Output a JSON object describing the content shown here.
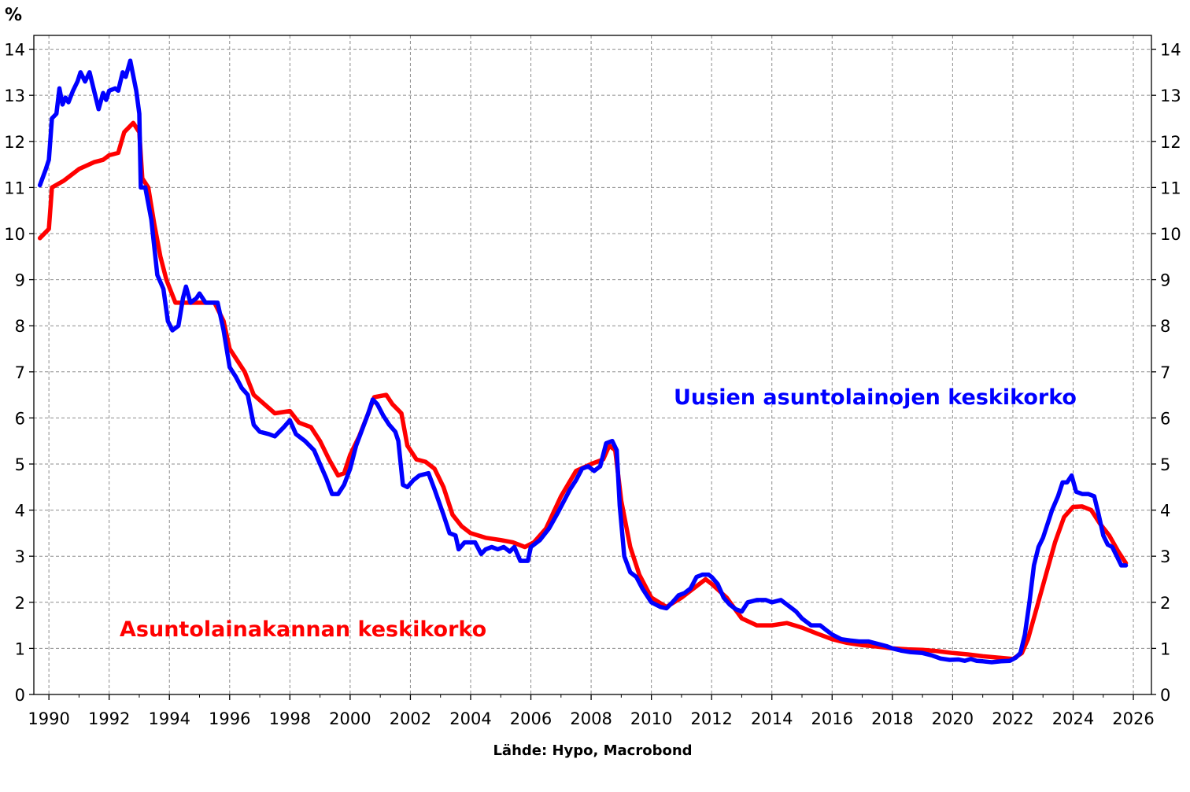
{
  "chart_data": {
    "type": "line",
    "unit_label": "%",
    "source": "Lähde: Hypo, Macrobond",
    "xlim": [
      1989.5,
      2026.6
    ],
    "ylim": [
      0,
      14.3
    ],
    "x_ticks": [
      1990,
      1992,
      1994,
      1996,
      1998,
      2000,
      2002,
      2004,
      2006,
      2008,
      2010,
      2012,
      2014,
      2016,
      2018,
      2020,
      2022,
      2024,
      2026
    ],
    "y_ticks": [
      0,
      1,
      2,
      3,
      4,
      5,
      6,
      7,
      8,
      9,
      10,
      11,
      12,
      13,
      14
    ],
    "grid": true,
    "series": [
      {
        "name": "Asuntolainakannan keskikorko",
        "color": "#ff0000",
        "points": [
          [
            1989.7,
            9.9
          ],
          [
            1990.0,
            10.1
          ],
          [
            1990.1,
            11.0
          ],
          [
            1990.5,
            11.15
          ],
          [
            1991.0,
            11.4
          ],
          [
            1991.5,
            11.55
          ],
          [
            1991.8,
            11.6
          ],
          [
            1992.0,
            11.7
          ],
          [
            1992.3,
            11.75
          ],
          [
            1992.5,
            12.2
          ],
          [
            1992.8,
            12.4
          ],
          [
            1993.0,
            12.2
          ],
          [
            1993.1,
            11.2
          ],
          [
            1993.3,
            11.0
          ],
          [
            1993.5,
            10.2
          ],
          [
            1993.7,
            9.5
          ],
          [
            1993.9,
            9.0
          ],
          [
            1994.2,
            8.5
          ],
          [
            1994.6,
            8.5
          ],
          [
            1995.0,
            8.5
          ],
          [
            1995.5,
            8.5
          ],
          [
            1995.8,
            8.1
          ],
          [
            1996.0,
            7.5
          ],
          [
            1996.5,
            7.0
          ],
          [
            1996.8,
            6.5
          ],
          [
            1997.5,
            6.1
          ],
          [
            1998.0,
            6.15
          ],
          [
            1998.3,
            5.9
          ],
          [
            1998.7,
            5.8
          ],
          [
            1999.0,
            5.5
          ],
          [
            1999.3,
            5.1
          ],
          [
            1999.6,
            4.75
          ],
          [
            1999.8,
            4.8
          ],
          [
            2000.0,
            5.2
          ],
          [
            2000.3,
            5.6
          ],
          [
            2000.6,
            6.1
          ],
          [
            2000.8,
            6.45
          ],
          [
            2001.2,
            6.5
          ],
          [
            2001.4,
            6.3
          ],
          [
            2001.7,
            6.1
          ],
          [
            2001.9,
            5.4
          ],
          [
            2002.2,
            5.1
          ],
          [
            2002.5,
            5.05
          ],
          [
            2002.8,
            4.9
          ],
          [
            2003.1,
            4.5
          ],
          [
            2003.4,
            3.9
          ],
          [
            2003.7,
            3.65
          ],
          [
            2004.0,
            3.5
          ],
          [
            2004.5,
            3.4
          ],
          [
            2005.0,
            3.35
          ],
          [
            2005.4,
            3.3
          ],
          [
            2005.8,
            3.2
          ],
          [
            2006.1,
            3.3
          ],
          [
            2006.5,
            3.6
          ],
          [
            2007.0,
            4.3
          ],
          [
            2007.5,
            4.85
          ],
          [
            2008.0,
            5.0
          ],
          [
            2008.4,
            5.1
          ],
          [
            2008.6,
            5.4
          ],
          [
            2008.8,
            5.3
          ],
          [
            2009.0,
            4.2
          ],
          [
            2009.3,
            3.2
          ],
          [
            2009.6,
            2.6
          ],
          [
            2010.0,
            2.1
          ],
          [
            2010.5,
            1.9
          ],
          [
            2011.0,
            2.1
          ],
          [
            2011.5,
            2.35
          ],
          [
            2011.8,
            2.5
          ],
          [
            2012.0,
            2.4
          ],
          [
            2012.5,
            2.1
          ],
          [
            2013.0,
            1.65
          ],
          [
            2013.5,
            1.5
          ],
          [
            2014.0,
            1.5
          ],
          [
            2014.5,
            1.55
          ],
          [
            2015.0,
            1.45
          ],
          [
            2015.5,
            1.32
          ],
          [
            2016.0,
            1.2
          ],
          [
            2016.5,
            1.12
          ],
          [
            2017.0,
            1.07
          ],
          [
            2017.5,
            1.04
          ],
          [
            2018.0,
            1.0
          ],
          [
            2018.5,
            0.98
          ],
          [
            2019.0,
            0.97
          ],
          [
            2019.5,
            0.94
          ],
          [
            2020.0,
            0.9
          ],
          [
            2020.5,
            0.87
          ],
          [
            2021.0,
            0.83
          ],
          [
            2021.5,
            0.8
          ],
          [
            2022.0,
            0.77
          ],
          [
            2022.3,
            0.9
          ],
          [
            2022.5,
            1.2
          ],
          [
            2022.8,
            1.9
          ],
          [
            2023.1,
            2.6
          ],
          [
            2023.4,
            3.3
          ],
          [
            2023.7,
            3.85
          ],
          [
            2024.0,
            4.07
          ],
          [
            2024.3,
            4.08
          ],
          [
            2024.6,
            4.0
          ],
          [
            2024.9,
            3.7
          ],
          [
            2025.2,
            3.45
          ],
          [
            2025.5,
            3.1
          ],
          [
            2025.75,
            2.85
          ]
        ]
      },
      {
        "name": "Uusien asuntolainojen keskikorko",
        "color": "#0000ff",
        "points": [
          [
            1989.7,
            11.05
          ],
          [
            1989.9,
            11.4
          ],
          [
            1990.0,
            11.6
          ],
          [
            1990.1,
            12.5
          ],
          [
            1990.25,
            12.6
          ],
          [
            1990.35,
            13.15
          ],
          [
            1990.45,
            12.8
          ],
          [
            1990.55,
            12.95
          ],
          [
            1990.65,
            12.85
          ],
          [
            1990.8,
            13.1
          ],
          [
            1990.95,
            13.3
          ],
          [
            1991.05,
            13.5
          ],
          [
            1991.2,
            13.3
          ],
          [
            1991.35,
            13.5
          ],
          [
            1991.5,
            13.1
          ],
          [
            1991.65,
            12.7
          ],
          [
            1991.8,
            13.05
          ],
          [
            1991.9,
            12.9
          ],
          [
            1992.0,
            13.1
          ],
          [
            1992.2,
            13.15
          ],
          [
            1992.3,
            13.1
          ],
          [
            1992.45,
            13.5
          ],
          [
            1992.55,
            13.4
          ],
          [
            1992.7,
            13.75
          ],
          [
            1992.9,
            13.1
          ],
          [
            1993.0,
            12.6
          ],
          [
            1993.05,
            11.0
          ],
          [
            1993.2,
            11.0
          ],
          [
            1993.4,
            10.3
          ],
          [
            1993.6,
            9.1
          ],
          [
            1993.8,
            8.8
          ],
          [
            1993.95,
            8.1
          ],
          [
            1994.1,
            7.9
          ],
          [
            1994.3,
            8.0
          ],
          [
            1994.45,
            8.6
          ],
          [
            1994.55,
            8.85
          ],
          [
            1994.7,
            8.5
          ],
          [
            1994.9,
            8.6
          ],
          [
            1995.0,
            8.7
          ],
          [
            1995.2,
            8.5
          ],
          [
            1995.6,
            8.5
          ],
          [
            1995.8,
            7.9
          ],
          [
            1996.0,
            7.1
          ],
          [
            1996.2,
            6.9
          ],
          [
            1996.4,
            6.65
          ],
          [
            1996.6,
            6.5
          ],
          [
            1996.8,
            5.85
          ],
          [
            1997.0,
            5.7
          ],
          [
            1997.3,
            5.65
          ],
          [
            1997.5,
            5.6
          ],
          [
            1997.8,
            5.8
          ],
          [
            1998.0,
            5.95
          ],
          [
            1998.2,
            5.65
          ],
          [
            1998.5,
            5.5
          ],
          [
            1998.8,
            5.3
          ],
          [
            1999.0,
            5.0
          ],
          [
            1999.2,
            4.7
          ],
          [
            1999.4,
            4.35
          ],
          [
            1999.6,
            4.35
          ],
          [
            1999.8,
            4.55
          ],
          [
            2000.0,
            4.9
          ],
          [
            2000.2,
            5.4
          ],
          [
            2000.4,
            5.75
          ],
          [
            2000.6,
            6.1
          ],
          [
            2000.75,
            6.4
          ],
          [
            2000.9,
            6.3
          ],
          [
            2001.1,
            6.05
          ],
          [
            2001.3,
            5.85
          ],
          [
            2001.5,
            5.7
          ],
          [
            2001.6,
            5.5
          ],
          [
            2001.75,
            4.55
          ],
          [
            2001.9,
            4.5
          ],
          [
            2002.1,
            4.65
          ],
          [
            2002.3,
            4.75
          ],
          [
            2002.6,
            4.8
          ],
          [
            2002.8,
            4.45
          ],
          [
            2003.1,
            3.9
          ],
          [
            2003.3,
            3.5
          ],
          [
            2003.5,
            3.45
          ],
          [
            2003.6,
            3.15
          ],
          [
            2003.8,
            3.3
          ],
          [
            2004.0,
            3.3
          ],
          [
            2004.15,
            3.3
          ],
          [
            2004.35,
            3.05
          ],
          [
            2004.5,
            3.15
          ],
          [
            2004.7,
            3.2
          ],
          [
            2004.9,
            3.15
          ],
          [
            2005.1,
            3.2
          ],
          [
            2005.3,
            3.1
          ],
          [
            2005.45,
            3.2
          ],
          [
            2005.65,
            2.9
          ],
          [
            2005.9,
            2.9
          ],
          [
            2006.0,
            3.2
          ],
          [
            2006.3,
            3.35
          ],
          [
            2006.6,
            3.6
          ],
          [
            2006.9,
            3.95
          ],
          [
            2007.1,
            4.2
          ],
          [
            2007.3,
            4.45
          ],
          [
            2007.5,
            4.65
          ],
          [
            2007.7,
            4.9
          ],
          [
            2007.9,
            4.95
          ],
          [
            2008.1,
            4.85
          ],
          [
            2008.3,
            4.95
          ],
          [
            2008.5,
            5.45
          ],
          [
            2008.7,
            5.5
          ],
          [
            2008.85,
            5.3
          ],
          [
            2008.95,
            4.1
          ],
          [
            2009.1,
            3.0
          ],
          [
            2009.3,
            2.65
          ],
          [
            2009.5,
            2.55
          ],
          [
            2009.7,
            2.3
          ],
          [
            2010.0,
            2.0
          ],
          [
            2010.3,
            1.9
          ],
          [
            2010.5,
            1.87
          ],
          [
            2010.7,
            2.0
          ],
          [
            2010.9,
            2.15
          ],
          [
            2011.1,
            2.2
          ],
          [
            2011.3,
            2.3
          ],
          [
            2011.5,
            2.55
          ],
          [
            2011.7,
            2.6
          ],
          [
            2011.9,
            2.6
          ],
          [
            2012.0,
            2.55
          ],
          [
            2012.2,
            2.4
          ],
          [
            2012.4,
            2.1
          ],
          [
            2012.6,
            1.95
          ],
          [
            2012.8,
            1.85
          ],
          [
            2013.0,
            1.8
          ],
          [
            2013.2,
            2.0
          ],
          [
            2013.5,
            2.05
          ],
          [
            2013.8,
            2.05
          ],
          [
            2014.0,
            2.0
          ],
          [
            2014.3,
            2.05
          ],
          [
            2014.5,
            1.95
          ],
          [
            2014.8,
            1.8
          ],
          [
            2015.0,
            1.65
          ],
          [
            2015.3,
            1.5
          ],
          [
            2015.6,
            1.5
          ],
          [
            2015.8,
            1.4
          ],
          [
            2016.0,
            1.3
          ],
          [
            2016.3,
            1.2
          ],
          [
            2016.6,
            1.17
          ],
          [
            2016.9,
            1.15
          ],
          [
            2017.2,
            1.15
          ],
          [
            2017.5,
            1.1
          ],
          [
            2017.8,
            1.05
          ],
          [
            2018.0,
            1.0
          ],
          [
            2018.3,
            0.95
          ],
          [
            2018.6,
            0.92
          ],
          [
            2019.0,
            0.9
          ],
          [
            2019.3,
            0.85
          ],
          [
            2019.6,
            0.78
          ],
          [
            2019.9,
            0.75
          ],
          [
            2020.2,
            0.76
          ],
          [
            2020.4,
            0.73
          ],
          [
            2020.6,
            0.77
          ],
          [
            2020.8,
            0.73
          ],
          [
            2021.0,
            0.72
          ],
          [
            2021.3,
            0.7
          ],
          [
            2021.6,
            0.72
          ],
          [
            2021.9,
            0.73
          ],
          [
            2022.1,
            0.8
          ],
          [
            2022.25,
            0.9
          ],
          [
            2022.4,
            1.3
          ],
          [
            2022.55,
            2.0
          ],
          [
            2022.7,
            2.8
          ],
          [
            2022.85,
            3.2
          ],
          [
            2023.0,
            3.4
          ],
          [
            2023.15,
            3.7
          ],
          [
            2023.3,
            4.0
          ],
          [
            2023.5,
            4.3
          ],
          [
            2023.65,
            4.6
          ],
          [
            2023.8,
            4.6
          ],
          [
            2023.95,
            4.75
          ],
          [
            2024.1,
            4.4
          ],
          [
            2024.3,
            4.35
          ],
          [
            2024.5,
            4.35
          ],
          [
            2024.7,
            4.3
          ],
          [
            2024.85,
            3.9
          ],
          [
            2025.0,
            3.45
          ],
          [
            2025.15,
            3.25
          ],
          [
            2025.3,
            3.2
          ],
          [
            2025.45,
            3.0
          ],
          [
            2025.6,
            2.8
          ],
          [
            2025.75,
            2.8
          ]
        ]
      }
    ]
  }
}
